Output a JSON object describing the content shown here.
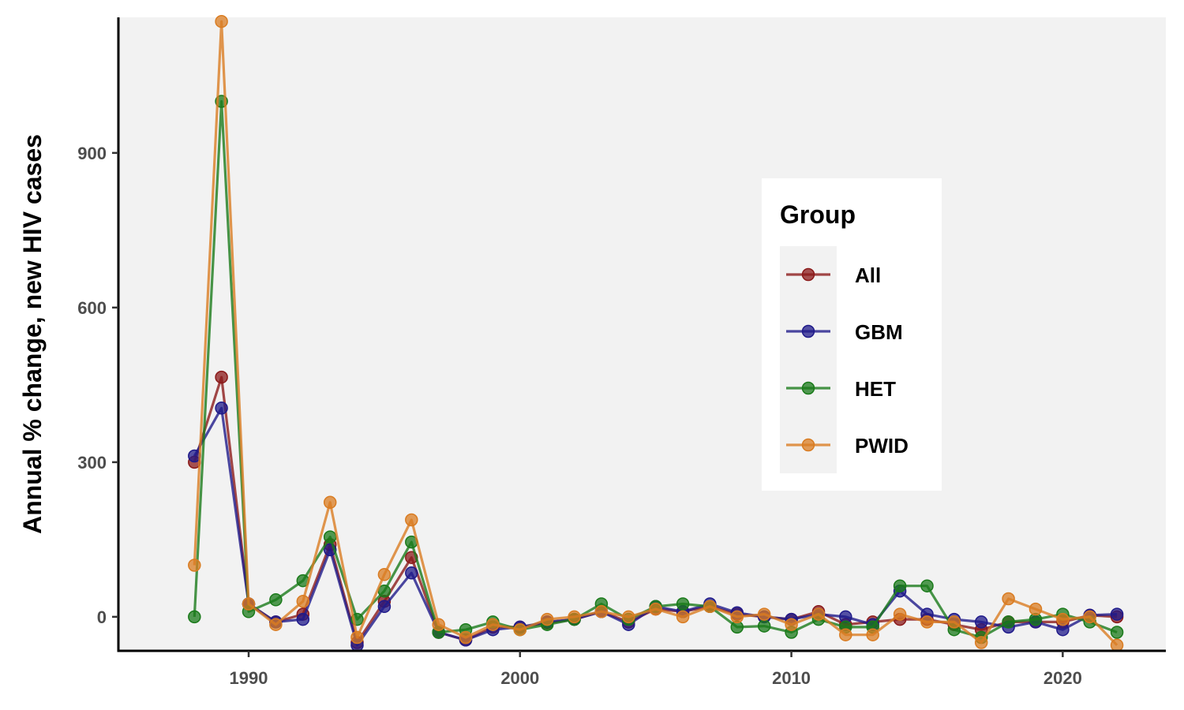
{
  "chart_data": {
    "type": "line",
    "xlabel": "",
    "ylabel": "Annual % change, new HIV cases",
    "xlim": [
      1985.2,
      2023.8
    ],
    "ylim": [
      -66,
      1163
    ],
    "x_ticks": [
      1990,
      2000,
      2010,
      2020
    ],
    "y_ticks": [
      0,
      300,
      600,
      900
    ],
    "grid": false,
    "background": "#f2f2f2",
    "legend": {
      "title": "Group",
      "placement": "right"
    },
    "x": [
      1988,
      1989,
      1990,
      1991,
      1992,
      1993,
      1994,
      1995,
      1996,
      1997,
      1998,
      1999,
      2000,
      2001,
      2002,
      2003,
      2004,
      2005,
      2006,
      2007,
      2008,
      2009,
      2010,
      2011,
      2012,
      2013,
      2014,
      2015,
      2016,
      2017,
      2018,
      2019,
      2020,
      2021,
      2022
    ],
    "series": [
      {
        "name": "All",
        "color": "#8b1a1a",
        "values": [
          300,
          465,
          25,
          -10,
          5,
          140,
          -50,
          30,
          115,
          -30,
          -45,
          -20,
          -20,
          -12,
          -5,
          10,
          -10,
          15,
          10,
          20,
          5,
          0,
          -5,
          10,
          -15,
          -10,
          -5,
          -5,
          -15,
          -25,
          -10,
          -10,
          -10,
          3,
          0
        ]
      },
      {
        "name": "GBM",
        "color": "#1f1a8a",
        "values": [
          312,
          405,
          25,
          -10,
          -5,
          130,
          -55,
          20,
          85,
          -30,
          -45,
          -25,
          -20,
          -10,
          -5,
          10,
          -15,
          20,
          10,
          25,
          8,
          0,
          -5,
          5,
          0,
          -15,
          50,
          5,
          -5,
          -10,
          -20,
          -10,
          -25,
          3,
          5
        ]
      },
      {
        "name": "HET",
        "color": "#1a7a1a",
        "values": [
          0,
          1000,
          10,
          33,
          70,
          155,
          -5,
          50,
          145,
          -30,
          -25,
          -10,
          -25,
          -15,
          -5,
          25,
          -5,
          20,
          25,
          20,
          -20,
          -18,
          -30,
          -5,
          -20,
          -20,
          60,
          60,
          -25,
          -40,
          -10,
          -5,
          5,
          -10,
          -30
        ]
      },
      {
        "name": "PWID",
        "color": "#d97c22",
        "values": [
          100,
          1155,
          25,
          -15,
          30,
          222,
          -40,
          82,
          188,
          -15,
          -40,
          -15,
          -25,
          -5,
          0,
          10,
          0,
          15,
          0,
          20,
          0,
          5,
          -15,
          5,
          -35,
          -35,
          5,
          -10,
          -10,
          -50,
          35,
          15,
          -5,
          0,
          -55
        ]
      }
    ]
  }
}
